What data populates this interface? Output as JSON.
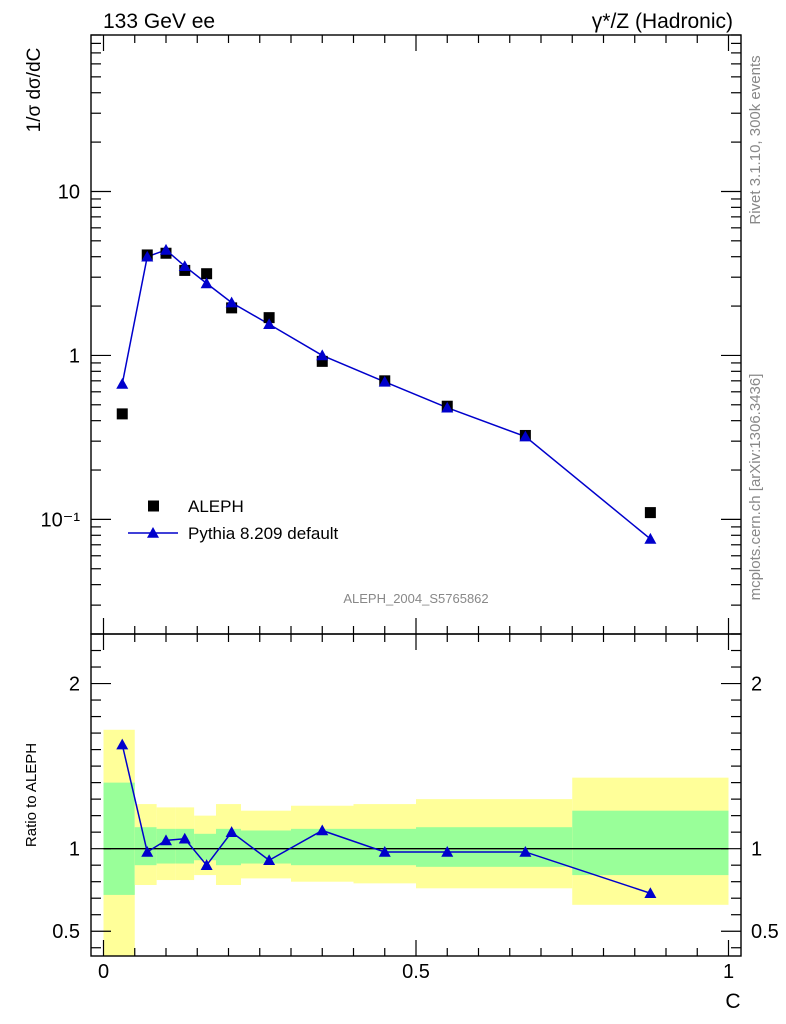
{
  "header": {
    "left": "133 GeV ee",
    "right": "γ*/Z (Hadronic)"
  },
  "side_text": {
    "top": "Rivet 3.1.10,  300k events",
    "bottom": "mcplots.cern.ch [arXiv:1306.3436]"
  },
  "watermark": "ALEPH_2004_S5765862",
  "chart_data": [
    {
      "panel": "main",
      "type": "scatter",
      "yscale": "log",
      "ylabel": "1/σ  dσ/dC",
      "xlim": [
        -0.02,
        1.02
      ],
      "ylim": [
        0.02,
        90
      ],
      "ytick_labels": [
        "10",
        "1",
        "10⁻¹"
      ],
      "legend": {
        "position": "bottom-left",
        "entries": [
          "ALEPH",
          "Pythia 8.209 default"
        ]
      },
      "series": [
        {
          "name": "ALEPH",
          "marker": "square",
          "color": "#000000",
          "x": [
            0.03,
            0.07,
            0.1,
            0.13,
            0.165,
            0.205,
            0.265,
            0.35,
            0.45,
            0.55,
            0.675,
            0.875
          ],
          "y": [
            0.44,
            4.1,
            4.2,
            3.3,
            3.15,
            1.95,
            1.7,
            0.92,
            0.7,
            0.49,
            0.325,
            0.11
          ]
        },
        {
          "name": "Pythia 8.209 default",
          "marker": "triangle",
          "color": "#0000cc",
          "x": [
            0.03,
            0.07,
            0.1,
            0.13,
            0.165,
            0.205,
            0.265,
            0.35,
            0.45,
            0.55,
            0.675,
            0.875
          ],
          "y": [
            0.67,
            4.0,
            4.4,
            3.5,
            2.75,
            2.1,
            1.55,
            1.0,
            0.69,
            0.48,
            0.32,
            0.076
          ]
        }
      ]
    },
    {
      "panel": "ratio",
      "type": "line",
      "ylabel": "Ratio to ALEPH",
      "xlabel": "C",
      "xlim": [
        -0.02,
        1.02
      ],
      "ylim": [
        0.35,
        2.3
      ],
      "xtick_labels": [
        "0",
        "0.5",
        "1"
      ],
      "ytick_labels": [
        "2",
        "1",
        "0.5"
      ],
      "bins": [
        {
          "lo": 0.0,
          "hi": 0.05,
          "inner": [
            0.72,
            1.4
          ],
          "outer": [
            0.35,
            1.72
          ]
        },
        {
          "lo": 0.05,
          "hi": 0.085,
          "inner": [
            0.9,
            1.13
          ],
          "outer": [
            0.78,
            1.27
          ]
        },
        {
          "lo": 0.085,
          "hi": 0.115,
          "inner": [
            0.91,
            1.12
          ],
          "outer": [
            0.81,
            1.25
          ]
        },
        {
          "lo": 0.115,
          "hi": 0.145,
          "inner": [
            0.91,
            1.12
          ],
          "outer": [
            0.81,
            1.25
          ]
        },
        {
          "lo": 0.145,
          "hi": 0.18,
          "inner": [
            0.93,
            1.09
          ],
          "outer": [
            0.84,
            1.2
          ]
        },
        {
          "lo": 0.18,
          "hi": 0.22,
          "inner": [
            0.9,
            1.12
          ],
          "outer": [
            0.78,
            1.27
          ]
        },
        {
          "lo": 0.22,
          "hi": 0.3,
          "inner": [
            0.91,
            1.11
          ],
          "outer": [
            0.82,
            1.23
          ]
        },
        {
          "lo": 0.3,
          "hi": 0.4,
          "inner": [
            0.9,
            1.12
          ],
          "outer": [
            0.8,
            1.26
          ]
        },
        {
          "lo": 0.4,
          "hi": 0.5,
          "inner": [
            0.9,
            1.12
          ],
          "outer": [
            0.79,
            1.27
          ]
        },
        {
          "lo": 0.5,
          "hi": 0.6,
          "inner": [
            0.89,
            1.13
          ],
          "outer": [
            0.76,
            1.3
          ]
        },
        {
          "lo": 0.6,
          "hi": 0.75,
          "inner": [
            0.89,
            1.13
          ],
          "outer": [
            0.76,
            1.3
          ]
        },
        {
          "lo": 0.75,
          "hi": 1.0,
          "inner": [
            0.84,
            1.23
          ],
          "outer": [
            0.66,
            1.43
          ]
        }
      ],
      "series": [
        {
          "name": "Pythia 8.209 default",
          "marker": "triangle",
          "color": "#0000cc",
          "x": [
            0.03,
            0.07,
            0.1,
            0.13,
            0.165,
            0.205,
            0.265,
            0.35,
            0.45,
            0.55,
            0.675,
            0.875
          ],
          "y": [
            1.63,
            0.98,
            1.05,
            1.06,
            0.9,
            1.1,
            0.93,
            1.11,
            0.98,
            0.98,
            0.98,
            0.73
          ]
        }
      ]
    }
  ],
  "colors": {
    "band_inner": "#99ff99",
    "band_outer": "#ffff99",
    "mc": "#0000cc",
    "data": "#000000"
  }
}
